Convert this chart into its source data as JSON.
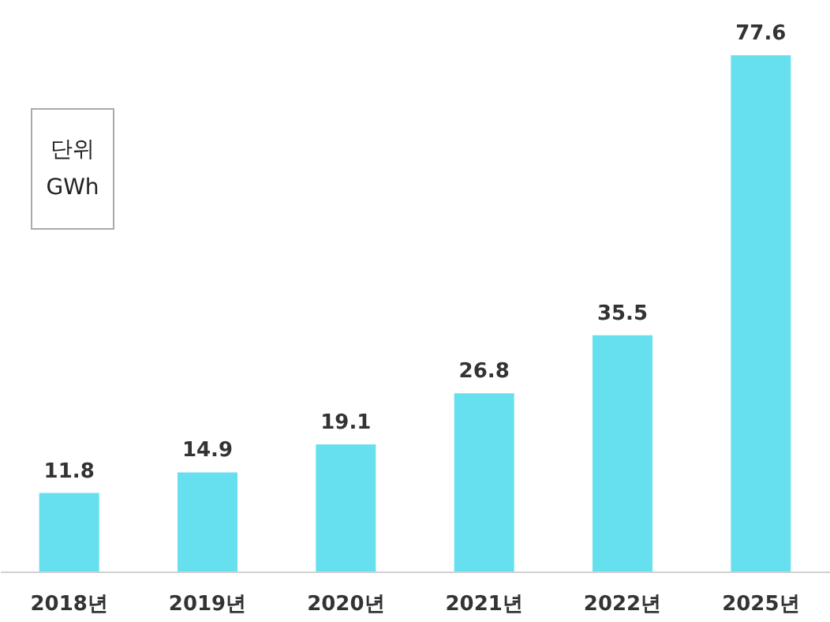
{
  "chart_data": {
    "type": "bar",
    "categories": [
      "2018년",
      "2019년",
      "2020년",
      "2021년",
      "2022년",
      "2025년"
    ],
    "values": [
      11.8,
      14.9,
      19.1,
      26.8,
      35.5,
      77.6
    ],
    "color": "#66e0ee",
    "data_labels": true,
    "grid": false,
    "annotations": [
      "단위\nGWh"
    ]
  }
}
